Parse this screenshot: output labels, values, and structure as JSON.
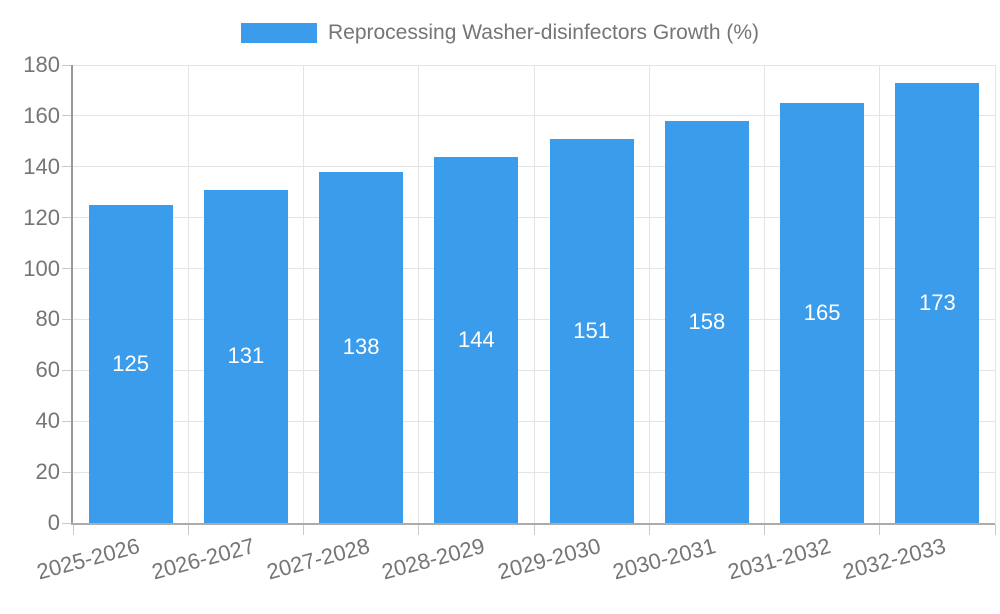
{
  "legend": {
    "label": "Reprocessing Washer-disinfectors Growth (%)"
  },
  "colors": {
    "series": "#3b9cec",
    "text": "#757575",
    "value_label_text": "#ffffff",
    "gridline": "#e4e4e4",
    "axis_line": "#9e9e9e",
    "background": "#ffffff"
  },
  "chart_data": {
    "type": "bar",
    "title": "Reprocessing Washer-disinfectors Growth (%)",
    "categories": [
      "2025-2026",
      "2026-2027",
      "2027-2028",
      "2028-2029",
      "2029-2030",
      "2030-2031",
      "2031-2032",
      "2032-2033"
    ],
    "values": [
      125,
      131,
      138,
      144,
      151,
      158,
      165,
      173
    ],
    "series_color": "#3b9cec",
    "xlabel": "",
    "ylabel": "",
    "ylim": [
      0,
      180
    ],
    "ytick_step": 20,
    "ytick_labels": [
      "0",
      "20",
      "40",
      "60",
      "80",
      "100",
      "120",
      "140",
      "160",
      "180"
    ],
    "grid": true,
    "x_label_rotation_deg": -15,
    "legend_position": "top-center",
    "value_labels_position": "inside-center"
  }
}
